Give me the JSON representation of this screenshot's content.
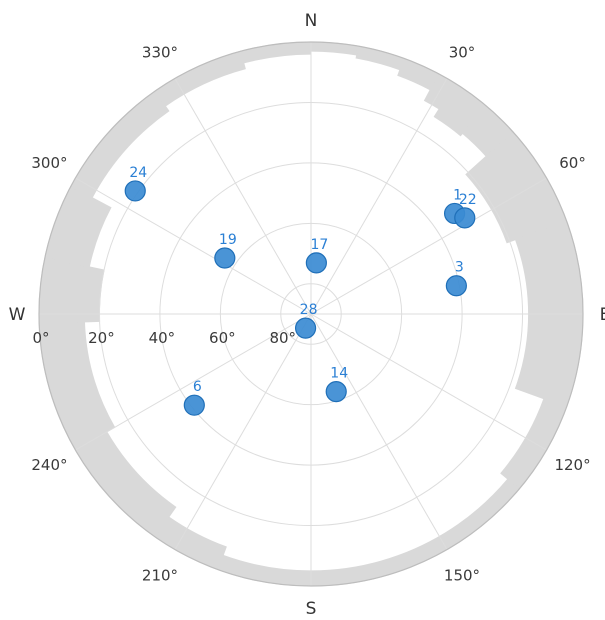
{
  "chart_data": {
    "type": "scatter",
    "plot_kind": "polar-skyplot",
    "colors": {
      "satellite_fill": "#3b8bd2",
      "satellite_stroke": "#1f6fb8",
      "satellite_label": "#2a7fd4",
      "mask_fill": "#d9d9d9",
      "grid": "#dddddd",
      "outer_ring": "#bdbdbd"
    },
    "direction_labels": [
      {
        "text": "N",
        "azimuth": 0
      },
      {
        "text": "E",
        "azimuth": 90
      },
      {
        "text": "S",
        "azimuth": 180
      },
      {
        "text": "W",
        "azimuth": 270
      }
    ],
    "azimuth_ticks": [
      {
        "text": "30°",
        "azimuth": 30
      },
      {
        "text": "60°",
        "azimuth": 60
      },
      {
        "text": "120°",
        "azimuth": 120
      },
      {
        "text": "150°",
        "azimuth": 150
      },
      {
        "text": "210°",
        "azimuth": 210
      },
      {
        "text": "240°",
        "azimuth": 240
      },
      {
        "text": "300°",
        "azimuth": 300
      },
      {
        "text": "330°",
        "azimuth": 330
      }
    ],
    "elevation_ticks": [
      {
        "text": "0°",
        "elevation": 0
      },
      {
        "text": "20°",
        "elevation": 20
      },
      {
        "text": "40°",
        "elevation": 40
      },
      {
        "text": "60°",
        "elevation": 60
      },
      {
        "text": "80°",
        "elevation": 80
      }
    ],
    "elevation_range": [
      0,
      90
    ],
    "satellites": [
      {
        "id": "1",
        "azimuth": 55,
        "elevation": 32
      },
      {
        "id": "22",
        "azimuth": 58,
        "elevation": 30
      },
      {
        "id": "3",
        "azimuth": 79,
        "elevation": 41
      },
      {
        "id": "17",
        "azimuth": 6,
        "elevation": 73
      },
      {
        "id": "19",
        "azimuth": 303,
        "elevation": 56
      },
      {
        "id": "24",
        "azimuth": 305,
        "elevation": 19
      },
      {
        "id": "28",
        "azimuth": 201,
        "elevation": 85
      },
      {
        "id": "14",
        "azimuth": 162,
        "elevation": 63
      },
      {
        "id": "6",
        "azimuth": 232,
        "elevation": 41
      }
    ],
    "elevation_mask": [
      {
        "az_start": 0,
        "az_end": 10,
        "elevation": 3
      },
      {
        "az_start": 10,
        "az_end": 20,
        "elevation": 4
      },
      {
        "az_start": 20,
        "az_end": 28,
        "elevation": 6
      },
      {
        "az_start": 28,
        "az_end": 32,
        "elevation": 10
      },
      {
        "az_start": 32,
        "az_end": 40,
        "elevation": 13
      },
      {
        "az_start": 40,
        "az_end": 48,
        "elevation": 12
      },
      {
        "az_start": 48,
        "az_end": 70,
        "elevation": 21
      },
      {
        "az_start": 70,
        "az_end": 110,
        "elevation": 18
      },
      {
        "az_start": 110,
        "az_end": 130,
        "elevation": 8
      },
      {
        "az_start": 130,
        "az_end": 160,
        "elevation": 5
      },
      {
        "az_start": 160,
        "az_end": 200,
        "elevation": 5
      },
      {
        "az_start": 200,
        "az_end": 215,
        "elevation": 8
      },
      {
        "az_start": 215,
        "az_end": 240,
        "elevation": 12
      },
      {
        "az_start": 240,
        "az_end": 268,
        "elevation": 15
      },
      {
        "az_start": 268,
        "az_end": 282,
        "elevation": 20
      },
      {
        "az_start": 282,
        "az_end": 298,
        "elevation": 15
      },
      {
        "az_start": 298,
        "az_end": 325,
        "elevation": 8
      },
      {
        "az_start": 325,
        "az_end": 345,
        "elevation": 6
      },
      {
        "az_start": 345,
        "az_end": 360,
        "elevation": 4
      }
    ]
  }
}
